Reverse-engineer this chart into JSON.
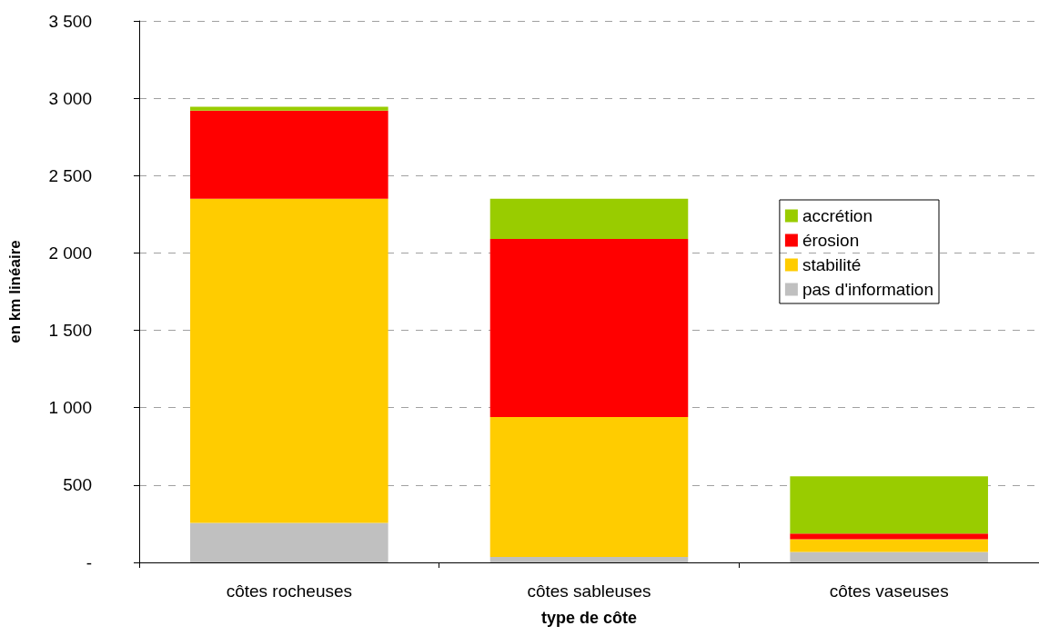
{
  "chart_data": {
    "type": "bar",
    "stacked": true,
    "xlabel": "type de côte",
    "ylabel": "en km linéaire",
    "categories": [
      "côtes rocheuses",
      "côtes sableuses",
      "côtes vaseuses"
    ],
    "series": [
      {
        "name": "pas d'information",
        "color": "#c0c0c0",
        "values": [
          255,
          35,
          68
        ]
      },
      {
        "name": "stabilité",
        "color": "#ffcc00",
        "values": [
          2095,
          905,
          82
        ]
      },
      {
        "name": "érosion",
        "color": "#ff0000",
        "values": [
          570,
          1150,
          36
        ]
      },
      {
        "name": "accrétion",
        "color": "#99cc00",
        "values": [
          25,
          260,
          371
        ]
      }
    ],
    "ylim": [
      0,
      3500
    ],
    "yticks": [
      {
        "value": 0,
        "label": "-"
      },
      500,
      {
        "value": 1000,
        "label": "1 000"
      },
      {
        "value": 1500,
        "label": "1 500"
      },
      {
        "value": 2000,
        "label": "2 000"
      },
      {
        "value": 2500,
        "label": "2 500"
      },
      {
        "value": 3000,
        "label": "3 000"
      },
      {
        "value": 3500,
        "label": "3 500"
      }
    ],
    "grid": "y",
    "legend": "right"
  }
}
